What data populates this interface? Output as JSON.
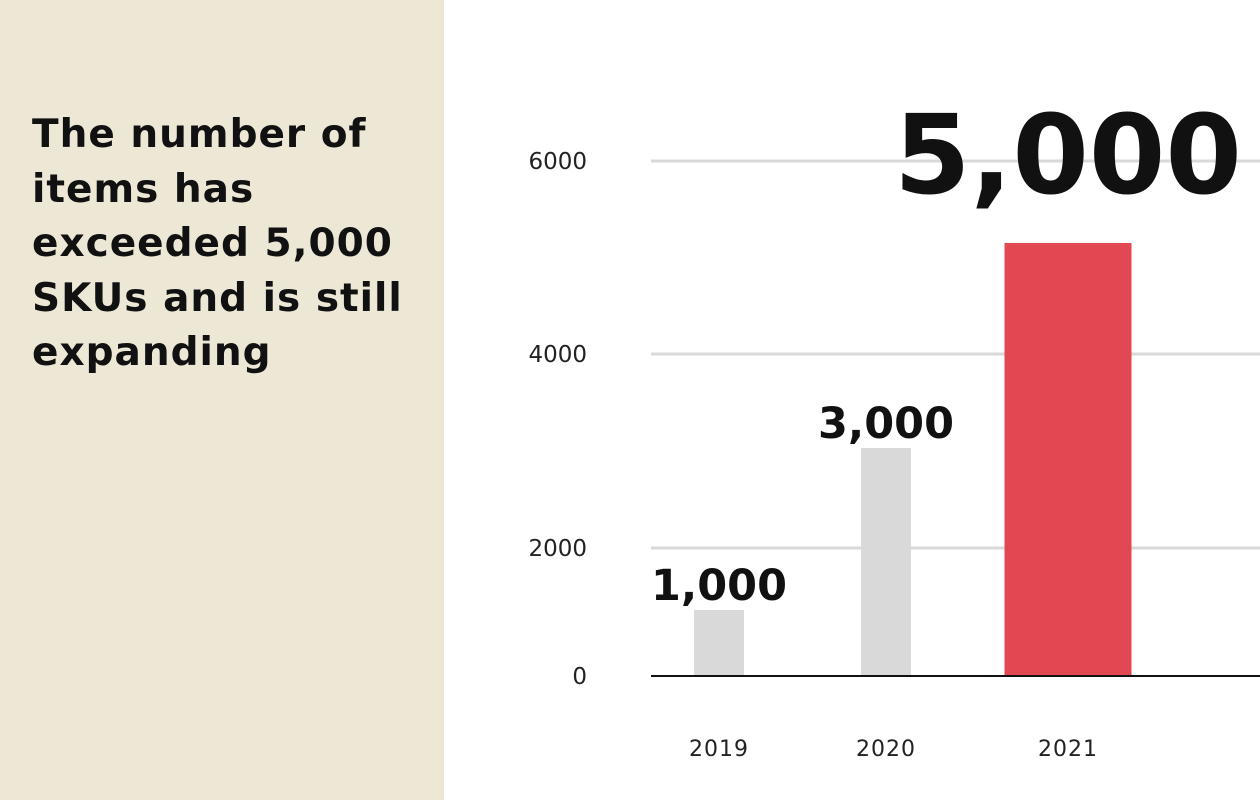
{
  "headline": "The number of items has exceeded 5,000 SKUs and is still expanding",
  "colors": {
    "panel_background": "#ede7d6",
    "bar_default": "#d9d9d9",
    "bar_highlight": "#e24851",
    "gridline": "#d9d9d9",
    "axis": "#111111"
  },
  "chart_data": {
    "type": "bar",
    "title": "",
    "xlabel": "",
    "ylabel": "",
    "categories": [
      "2019",
      "2020",
      "2021"
    ],
    "values": [
      1000,
      3000,
      5000
    ],
    "data_labels": [
      "1,000",
      "3,000",
      "5,000"
    ],
    "highlight_category": "2021",
    "y_ticks": [
      {
        "value": 0,
        "label": "0"
      },
      {
        "value": 2000,
        "label": "2000"
      },
      {
        "value": 4000,
        "label": "4000"
      },
      {
        "value": 6000,
        "label": "6000"
      }
    ],
    "ylim": [
      0,
      6000
    ],
    "grid": true,
    "legend": "none"
  }
}
